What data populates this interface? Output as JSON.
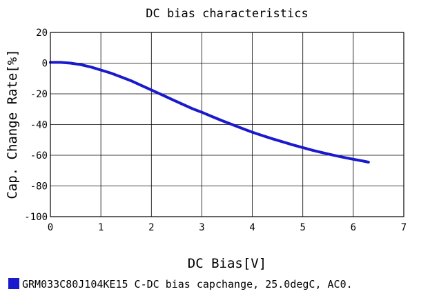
{
  "chart_data": {
    "type": "line",
    "title": "DC bias characteristics",
    "xlabel": "DC Bias[V]",
    "ylabel": "Cap. Change Rate[%]",
    "xlim": [
      0,
      7
    ],
    "ylim": [
      -100,
      20
    ],
    "x_ticks": [
      "0",
      "1",
      "2",
      "3",
      "4",
      "5",
      "6",
      "7"
    ],
    "y_ticks": [
      "20",
      "0",
      "-20",
      "-40",
      "-60",
      "-80",
      "-100"
    ],
    "grid": true,
    "legend_position": "bottom",
    "series": [
      {
        "name": "GRM033C80J104KE15 C-DC bias capchange, 25.0degC, AC0.",
        "color": "#1a1acc",
        "x": [
          0,
          0.2,
          0.4,
          0.6,
          0.8,
          1.0,
          1.2,
          1.4,
          1.6,
          1.8,
          2.0,
          2.2,
          2.4,
          2.6,
          2.8,
          3.0,
          3.2,
          3.4,
          3.6,
          3.8,
          4.0,
          4.2,
          4.4,
          4.6,
          4.8,
          5.0,
          5.2,
          5.4,
          5.6,
          5.8,
          6.0,
          6.2,
          6.3
        ],
        "y": [
          0.5,
          0.5,
          0,
          -1,
          -2.5,
          -4.5,
          -6.5,
          -9,
          -11.5,
          -14.5,
          -17.5,
          -20.5,
          -23.5,
          -26.5,
          -29.5,
          -32,
          -34.8,
          -37.5,
          -40,
          -42.5,
          -45,
          -47.2,
          -49.3,
          -51.3,
          -53.2,
          -55,
          -56.8,
          -58.4,
          -59.9,
          -61.3,
          -62.6,
          -63.8,
          -64.5
        ]
      }
    ]
  }
}
